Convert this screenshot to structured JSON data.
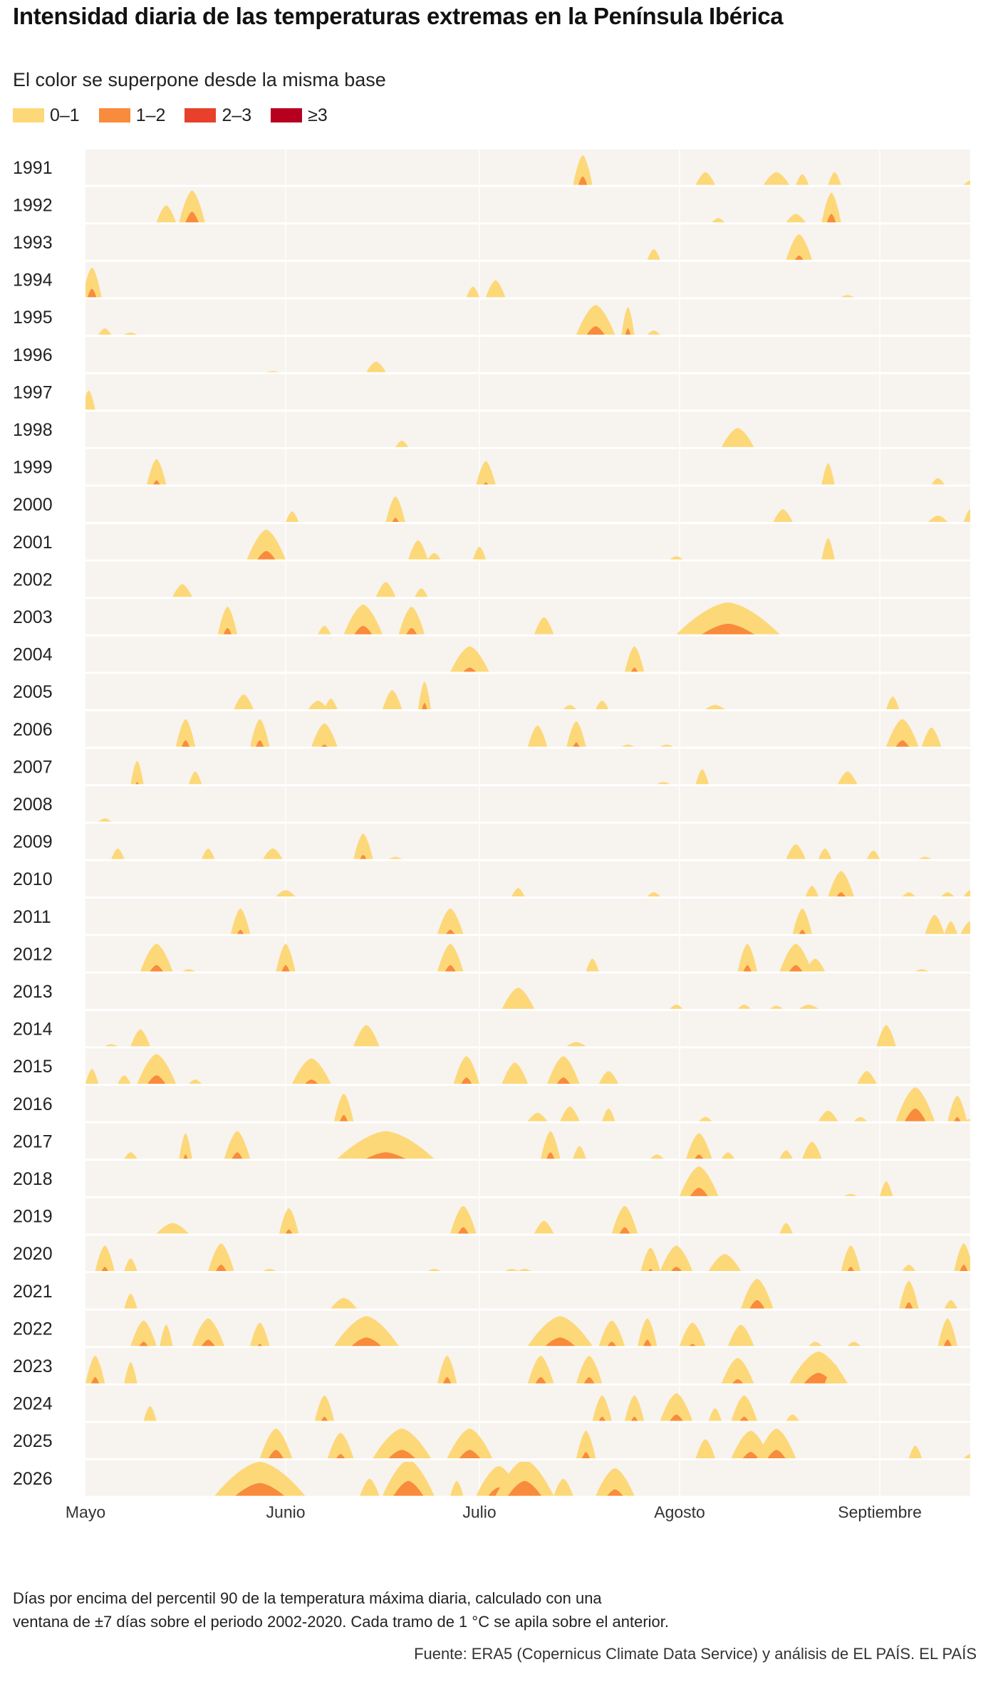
{
  "title": "Intensidad diaria de las temperaturas extremas en la Península Ibérica",
  "subtitle": "El color se superpone desde la misma base",
  "legend": [
    {
      "label": "0–1",
      "color": "#fdd879"
    },
    {
      "label": "1–2",
      "color": "#f98b3c"
    },
    {
      "label": "2–3",
      "color": "#e8402a"
    },
    {
      "label": "≥3",
      "color": "#b7001f"
    }
  ],
  "chart_data": {
    "type": "area",
    "description_axis": "days from 1 May",
    "x_ticks": [
      {
        "day": 0,
        "label": "Mayo"
      },
      {
        "day": 31,
        "label": "Junio"
      },
      {
        "day": 61,
        "label": "Julio"
      },
      {
        "day": 92,
        "label": "Agosto"
      },
      {
        "day": 123,
        "label": "Septiembre"
      }
    ],
    "x_range": [
      0,
      137
    ],
    "y_range": [
      0,
      4
    ],
    "colors": [
      "#fdd879",
      "#f98b3c",
      "#e8402a",
      "#b7001f"
    ],
    "years": [
      "1991",
      "1992",
      "1993",
      "1994",
      "1995",
      "1996",
      "1997",
      "1998",
      "1999",
      "2000",
      "2001",
      "2002",
      "2003",
      "2004",
      "2005",
      "2006",
      "2007",
      "2008",
      "2009",
      "2010",
      "2011",
      "2012",
      "2013",
      "2014",
      "2015",
      "2016",
      "2017",
      "2018",
      "2019",
      "2020",
      "2021",
      "2022",
      "2023",
      "2024",
      "2025",
      "2026"
    ],
    "events": {
      "1991": [
        [
          77,
          1.4,
          3
        ],
        [
          96,
          0.6,
          3
        ],
        [
          107,
          0.6,
          4
        ],
        [
          111,
          0.5,
          2
        ],
        [
          116,
          0.6,
          2
        ],
        [
          137,
          0.2,
          2
        ]
      ],
      "1992": [
        [
          12.5,
          0.8,
          3
        ],
        [
          16.5,
          1.5,
          4
        ],
        [
          98,
          0.2,
          2
        ],
        [
          110,
          0.4,
          3
        ],
        [
          115.5,
          1.4,
          3
        ]
      ],
      "1993": [
        [
          88,
          0.5,
          2
        ],
        [
          110.5,
          1.2,
          4
        ]
      ],
      "1994": [
        [
          1,
          1.4,
          3
        ],
        [
          60,
          0.5,
          2
        ],
        [
          63.5,
          0.8,
          3
        ],
        [
          118,
          0.1,
          2
        ]
      ],
      "1995": [
        [
          3,
          0.3,
          2
        ],
        [
          7,
          0.1,
          2
        ],
        [
          79,
          1.4,
          6
        ],
        [
          84,
          1.3,
          2
        ],
        [
          88,
          0.2,
          2
        ]
      ],
      "1996": [
        [
          29,
          0.05,
          2
        ],
        [
          45,
          0.5,
          3
        ]
      ],
      "1997": [
        [
          0.5,
          0.9,
          2
        ]
      ],
      "1998": [
        [
          49,
          0.3,
          2
        ],
        [
          101,
          0.9,
          5
        ]
      ],
      "1999": [
        [
          11,
          1.2,
          3
        ],
        [
          62,
          1.1,
          3
        ],
        [
          115,
          1,
          2
        ],
        [
          132,
          0.3,
          2
        ]
      ],
      "2000": [
        [
          32,
          0.5,
          2
        ],
        [
          48,
          1.2,
          3
        ],
        [
          108,
          0.6,
          3
        ],
        [
          132,
          0.3,
          3
        ],
        [
          137,
          0.6,
          2
        ]
      ],
      "2001": [
        [
          28,
          1.4,
          6
        ],
        [
          51.5,
          0.9,
          3
        ],
        [
          54,
          0.3,
          2
        ],
        [
          61,
          0.6,
          2
        ],
        [
          91.5,
          0.15,
          2
        ],
        [
          115,
          1,
          2
        ]
      ],
      "2002": [
        [
          15,
          0.6,
          3
        ],
        [
          46.5,
          0.7,
          3
        ],
        [
          52,
          0.4,
          2
        ]
      ],
      "2003": [
        [
          22,
          1.3,
          3
        ],
        [
          37,
          0.4,
          2
        ],
        [
          43,
          1.4,
          6
        ],
        [
          50.5,
          1.3,
          4
        ],
        [
          71,
          0.8,
          3
        ],
        [
          99.5,
          1.5,
          16
        ]
      ],
      "2004": [
        [
          59.5,
          1.2,
          6
        ],
        [
          85,
          1.2,
          3
        ]
      ],
      "2005": [
        [
          24.5,
          0.7,
          3
        ],
        [
          36,
          0.4,
          3
        ],
        [
          38,
          0.5,
          2
        ],
        [
          47.5,
          0.9,
          3
        ],
        [
          52.5,
          1.3,
          2
        ],
        [
          75,
          0.2,
          2
        ],
        [
          80,
          0.4,
          2
        ],
        [
          97.5,
          0.2,
          3
        ],
        [
          125,
          0.6,
          2
        ]
      ],
      "2006": [
        [
          15.5,
          1.3,
          3
        ],
        [
          27,
          1.3,
          3
        ],
        [
          37,
          1.1,
          4
        ],
        [
          70,
          1,
          3
        ],
        [
          76,
          1.2,
          3
        ],
        [
          84,
          0.1,
          2
        ],
        [
          90,
          0.1,
          2
        ],
        [
          126.5,
          1.3,
          5
        ],
        [
          131,
          0.9,
          3
        ]
      ],
      "2007": [
        [
          8,
          1.1,
          2
        ],
        [
          17,
          0.6,
          2
        ],
        [
          89.5,
          0.1,
          2
        ],
        [
          95.5,
          0.7,
          2
        ],
        [
          118,
          0.6,
          3
        ]
      ],
      "2008": [
        [
          3,
          0.15,
          2
        ]
      ],
      "2009": [
        [
          5,
          0.5,
          2
        ],
        [
          19,
          0.5,
          2
        ],
        [
          29,
          0.5,
          3
        ],
        [
          43,
          1.2,
          3
        ],
        [
          48,
          0.1,
          2
        ],
        [
          110,
          0.7,
          3
        ],
        [
          114.5,
          0.5,
          2
        ],
        [
          122,
          0.4,
          2
        ],
        [
          130,
          0.1,
          2
        ]
      ],
      "2010": [
        [
          31,
          0.3,
          3
        ],
        [
          67,
          0.4,
          2
        ],
        [
          88,
          0.2,
          2
        ],
        [
          112.5,
          0.5,
          2
        ],
        [
          117,
          1.2,
          4
        ],
        [
          127.5,
          0.2,
          2
        ],
        [
          133.5,
          0.2,
          2
        ],
        [
          137,
          0.3,
          2
        ]
      ],
      "2011": [
        [
          24,
          1.2,
          3
        ],
        [
          56.5,
          1.2,
          4
        ],
        [
          111,
          1.2,
          3
        ],
        [
          131.5,
          0.9,
          3
        ],
        [
          134,
          0.6,
          2
        ],
        [
          137,
          0.6,
          3
        ]
      ],
      "2012": [
        [
          11,
          1.3,
          5
        ],
        [
          16,
          0.1,
          2
        ],
        [
          31,
          1.3,
          3
        ],
        [
          56.5,
          1.3,
          4
        ],
        [
          78.5,
          0.6,
          2
        ],
        [
          102.5,
          1.3,
          3
        ],
        [
          110,
          1.3,
          5
        ],
        [
          113,
          0.6,
          3
        ],
        [
          129.5,
          0.1,
          2
        ]
      ],
      "2013": [
        [
          67,
          1,
          5
        ],
        [
          91.5,
          0.2,
          2
        ],
        [
          102,
          0.2,
          2
        ],
        [
          107,
          0.15,
          2
        ],
        [
          112,
          0.2,
          3
        ]
      ],
      "2014": [
        [
          4,
          0.1,
          2
        ],
        [
          8.5,
          0.8,
          3
        ],
        [
          43.5,
          1,
          4
        ],
        [
          76,
          0.2,
          3
        ],
        [
          124,
          1,
          3
        ]
      ],
      "2015": [
        [
          1,
          0.7,
          2
        ],
        [
          6,
          0.4,
          2
        ],
        [
          11,
          1.4,
          6
        ],
        [
          17,
          0.2,
          2
        ],
        [
          35,
          1.2,
          6
        ],
        [
          59,
          1.3,
          4
        ],
        [
          66.5,
          1,
          4
        ],
        [
          74,
          1.3,
          5
        ],
        [
          81,
          0.6,
          3
        ],
        [
          121,
          0.6,
          3
        ]
      ],
      "2016": [
        [
          40,
          1.3,
          3
        ],
        [
          70,
          0.4,
          3
        ],
        [
          75,
          0.7,
          3
        ],
        [
          81,
          0.6,
          2
        ],
        [
          96,
          0.2,
          2
        ],
        [
          115,
          0.5,
          3
        ],
        [
          120,
          0.2,
          2
        ],
        [
          128.5,
          1.6,
          6
        ],
        [
          135,
          1.2,
          3
        ],
        [
          137,
          0.1,
          2
        ]
      ],
      "2017": [
        [
          7,
          0.3,
          2
        ],
        [
          15.5,
          1.2,
          2
        ],
        [
          23.5,
          1.3,
          4
        ],
        [
          46.5,
          1.3,
          15
        ],
        [
          72,
          1.3,
          3
        ],
        [
          76.5,
          0.6,
          2
        ],
        [
          88.5,
          0.2,
          2
        ],
        [
          95,
          1.2,
          4
        ],
        [
          99.5,
          0.3,
          2
        ],
        [
          108.5,
          0.4,
          2
        ],
        [
          112.5,
          0.8,
          3
        ]
      ],
      "2018": [
        [
          95,
          1.4,
          6
        ],
        [
          118.5,
          0.1,
          2
        ],
        [
          124,
          0.7,
          2
        ]
      ],
      "2019": [
        [
          13.5,
          0.5,
          5
        ],
        [
          31.5,
          1.2,
          3
        ],
        [
          58.5,
          1.3,
          4
        ],
        [
          71,
          0.6,
          3
        ],
        [
          83.5,
          1.3,
          4
        ],
        [
          108.5,
          0.5,
          2
        ]
      ],
      "2020": [
        [
          3,
          1.2,
          3
        ],
        [
          7,
          0.6,
          2
        ],
        [
          21,
          1.3,
          4
        ],
        [
          28.5,
          0.1,
          2
        ],
        [
          54,
          0.1,
          2
        ],
        [
          66,
          0.1,
          2
        ],
        [
          68,
          0.1,
          2
        ],
        [
          87.5,
          1.1,
          3
        ],
        [
          91.5,
          1.2,
          5
        ],
        [
          99,
          0.8,
          5
        ],
        [
          118.5,
          1.2,
          3
        ],
        [
          127.5,
          0.3,
          2
        ],
        [
          136,
          1.3,
          3
        ]
      ],
      "2021": [
        [
          7,
          0.7,
          2
        ],
        [
          40,
          0.5,
          4
        ],
        [
          104,
          1.4,
          5
        ],
        [
          127.5,
          1.3,
          3
        ],
        [
          134,
          0.4,
          2
        ]
      ],
      "2022": [
        [
          9,
          1.2,
          4
        ],
        [
          12.5,
          1,
          2
        ],
        [
          19,
          1.3,
          5
        ],
        [
          27,
          1.1,
          3
        ],
        [
          43.5,
          1.4,
          10
        ],
        [
          73.5,
          1.4,
          10
        ],
        [
          81.5,
          1.2,
          4
        ],
        [
          87,
          1.3,
          3
        ],
        [
          94,
          1.1,
          4
        ],
        [
          101.5,
          1,
          4
        ],
        [
          113,
          0.2,
          2
        ],
        [
          119,
          0.2,
          2
        ],
        [
          133.5,
          1.3,
          3
        ]
      ],
      "2023": [
        [
          1.5,
          1.3,
          3
        ],
        [
          7,
          1,
          2
        ],
        [
          56,
          1.3,
          3
        ],
        [
          70.5,
          1.3,
          4
        ],
        [
          78,
          1.3,
          4
        ],
        [
          101,
          1.2,
          5
        ],
        [
          113.5,
          1.5,
          9
        ],
        [
          116,
          0.9,
          3
        ]
      ],
      "2024": [
        [
          10,
          0.7,
          2
        ],
        [
          37,
          1.2,
          3
        ],
        [
          80,
          1.2,
          3
        ],
        [
          85,
          1.2,
          3
        ],
        [
          91.5,
          1.3,
          5
        ],
        [
          97.5,
          0.6,
          2
        ],
        [
          102,
          1.2,
          4
        ],
        [
          109.5,
          0.3,
          2
        ]
      ],
      "2025": [
        [
          29.5,
          1.4,
          5
        ],
        [
          39.5,
          1.2,
          4
        ],
        [
          49,
          1.4,
          9
        ],
        [
          59.5,
          1.4,
          7
        ],
        [
          77.5,
          1.3,
          3
        ],
        [
          96,
          0.9,
          3
        ],
        [
          103,
          1.3,
          6
        ],
        [
          107,
          1.4,
          6
        ],
        [
          128.5,
          0.6,
          2
        ],
        [
          137,
          0.2,
          2
        ]
      ],
      "2026": [
        [
          27,
          1.6,
          14
        ],
        [
          44,
          0.8,
          3
        ],
        [
          50,
          1.7,
          8
        ],
        [
          57.5,
          0.7,
          2
        ],
        [
          64,
          1.4,
          7
        ],
        [
          68,
          1.7,
          9
        ],
        [
          74,
          0.8,
          3
        ],
        [
          82,
          1.3,
          6
        ]
      ]
    }
  },
  "note": {
    "line1": "Días por encima del percentil 90 de la temperatura máxima diaria, calculado con una",
    "line2": "ventana de ±7 días sobre el periodo 2002-2020. Cada tramo de 1 °C se apila sobre el anterior."
  },
  "source": "Fuente: ERA5 (Copernicus Climate Data Service) y análisis de EL PAÍS. EL PAÍS"
}
